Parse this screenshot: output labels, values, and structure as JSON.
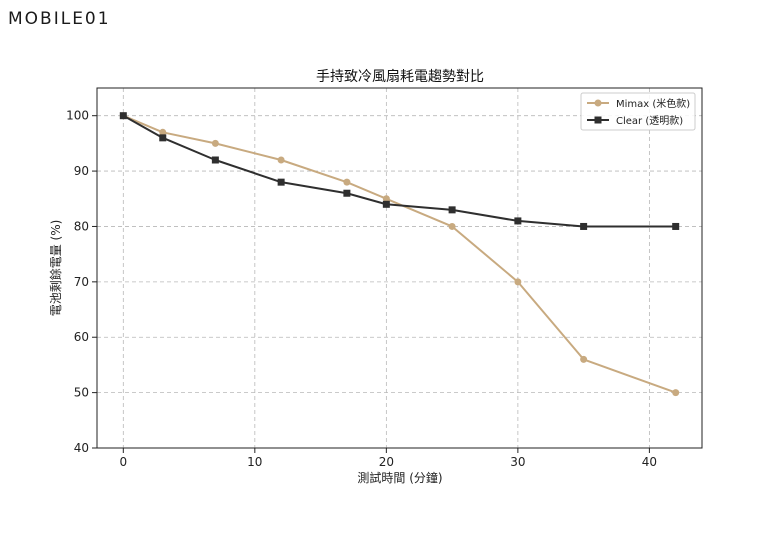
{
  "logo": {
    "text": "MOBILE01"
  },
  "chart_data": {
    "type": "line",
    "title": "手持致冷風扇耗電趨勢對比",
    "xlabel": "測試時間 (分鐘)",
    "ylabel": "電池剩餘電量 (%)",
    "xlim": [
      -2,
      44
    ],
    "ylim": [
      40,
      105
    ],
    "xticks": [
      0,
      10,
      20,
      30,
      40
    ],
    "yticks": [
      40,
      50,
      60,
      70,
      80,
      90,
      100
    ],
    "grid": true,
    "legend_position": "top-right",
    "series": [
      {
        "name": "Mimax (米色款)",
        "color": "#c8aa80",
        "marker": "circle",
        "x": [
          0,
          3,
          7,
          12,
          17,
          20,
          25,
          30,
          35,
          42
        ],
        "y": [
          100,
          97,
          95,
          92,
          88,
          85,
          80,
          70,
          56,
          50
        ]
      },
      {
        "name": "Clear (透明款)",
        "color": "#2f2f2f",
        "marker": "square",
        "x": [
          0,
          3,
          7,
          12,
          17,
          20,
          25,
          30,
          35,
          42
        ],
        "y": [
          100,
          96,
          92,
          88,
          86,
          84,
          83,
          81,
          80,
          80
        ]
      }
    ]
  }
}
